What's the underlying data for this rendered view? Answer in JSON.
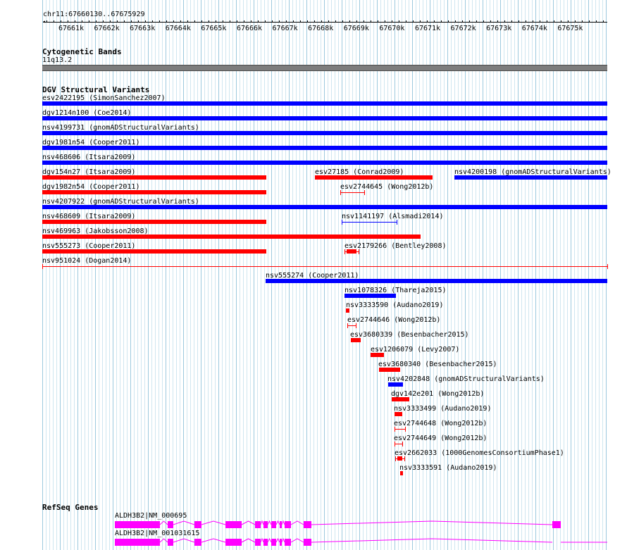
{
  "locus": "chr11:67660130..67675929",
  "ruler": {
    "ticks": [
      "67661k",
      "67662k",
      "67663k",
      "67664k",
      "67665k",
      "67666k",
      "67667k",
      "67668k",
      "67669k",
      "67670k",
      "67671k",
      "67672k",
      "67673k",
      "67674k",
      "67675k"
    ]
  },
  "tracks": {
    "cytobands": {
      "title": "Cytogenetic Bands",
      "band": "11q13.2"
    },
    "dgv": {
      "title": "DGV Structural Variants",
      "features": [
        {
          "label": "esv2422195 (SimonSanchez2007)",
          "color": "blue"
        },
        {
          "label": "dgv1214n100 (Coe2014)",
          "color": "blue"
        },
        {
          "label": "nsv4199731 (gnomADStructuralVariants)",
          "color": "blue"
        },
        {
          "label": "dgv1981n54 (Cooper2011)",
          "color": "blue"
        },
        {
          "label": "nsv468606 (Itsara2009)",
          "color": "blue"
        },
        {
          "label": "dgv154n27 (Itsara2009)",
          "color": "red"
        },
        {
          "label": "esv27185 (Conrad2009)",
          "color": "red"
        },
        {
          "label": "nsv4200198 (gnomADStructuralVariants)",
          "color": "blue"
        },
        {
          "label": "dgv1982n54 (Cooper2011)",
          "color": "red"
        },
        {
          "label": "esv2744645 (Wong2012b)",
          "color": "red"
        },
        {
          "label": "nsv4207922 (gnomADStructuralVariants)",
          "color": "blue"
        },
        {
          "label": "nsv468609 (Itsara2009)",
          "color": "red"
        },
        {
          "label": "nsv1141197 (Alsmadi2014)",
          "color": "blue"
        },
        {
          "label": "nsv469963 (Jakobsson2008)",
          "color": "red"
        },
        {
          "label": "nsv555273 (Cooper2011)",
          "color": "red"
        },
        {
          "label": "esv2179266 (Bentley2008)",
          "color": "red"
        },
        {
          "label": "nsv951024 (Dogan2014)",
          "color": "red"
        },
        {
          "label": "nsv555274 (Cooper2011)",
          "color": "blue"
        },
        {
          "label": "nsv1078326 (Thareja2015)",
          "color": "blue"
        },
        {
          "label": "nsv3333590 (Audano2019)",
          "color": "red"
        },
        {
          "label": "esv2744646 (Wong2012b)",
          "color": "red"
        },
        {
          "label": "esv3680339 (Besenbacher2015)",
          "color": "red"
        },
        {
          "label": "esv1206079 (Levy2007)",
          "color": "red"
        },
        {
          "label": "esv3680340 (Besenbacher2015)",
          "color": "red"
        },
        {
          "label": "nsv4202848 (gnomADStructuralVariants)",
          "color": "blue"
        },
        {
          "label": "dgv142e201 (Wong2012b)",
          "color": "red"
        },
        {
          "label": "nsv3333499 (Audano2019)",
          "color": "red"
        },
        {
          "label": "esv2744648 (Wong2012b)",
          "color": "red"
        },
        {
          "label": "esv2744649 (Wong2012b)",
          "color": "red"
        },
        {
          "label": "esv2662033 (1000GenomesConsortiumPhase1)",
          "color": "red"
        },
        {
          "label": "nsv3333591 (Audano2019)",
          "color": "red"
        }
      ]
    },
    "refseq": {
      "title": "RefSeq Genes",
      "transcripts": [
        {
          "label": "ALDH3B2|NM_000695"
        },
        {
          "label": "ALDH3B2|NM_001031615"
        }
      ]
    }
  },
  "colors": {
    "red": "#ff0000",
    "blue": "#0000ff",
    "exon": "#ff00ff",
    "grid": "#aad4e6"
  }
}
